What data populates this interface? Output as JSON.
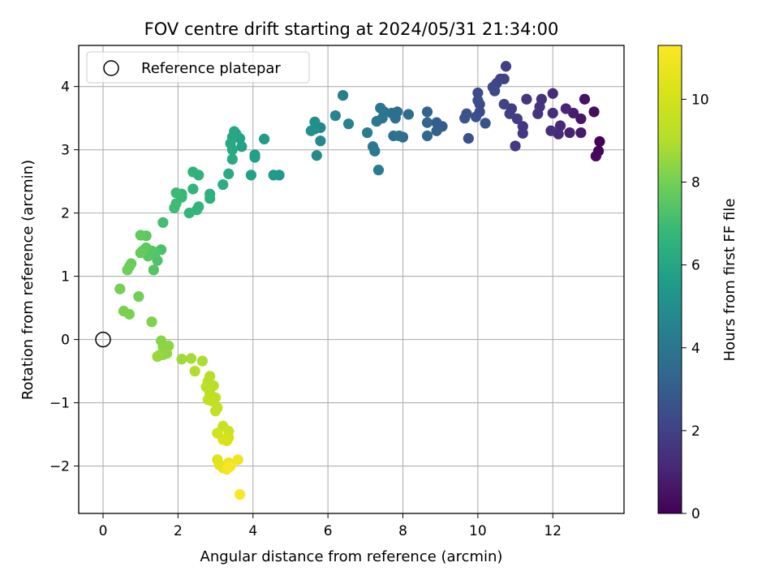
{
  "chart_data": {
    "type": "scatter",
    "title": "FOV centre drift starting at 2024/05/31 21:34:00",
    "xlabel": "Angular distance from reference (arcmin)",
    "ylabel": "Rotation from reference (arcmin)",
    "xlim": [
      -0.65,
      13.9
    ],
    "ylim": [
      -2.75,
      4.65
    ],
    "xticks": [
      0,
      2,
      4,
      6,
      8,
      10,
      12
    ],
    "yticks": [
      -2,
      -1,
      0,
      1,
      2,
      3,
      4
    ],
    "xtick_labels": [
      "0",
      "2",
      "4",
      "6",
      "8",
      "10",
      "12"
    ],
    "ytick_labels": [
      "−2",
      "−1",
      "0",
      "1",
      "2",
      "3",
      "4"
    ],
    "grid": true,
    "legend": {
      "placement": "top-left",
      "label": "Reference platepar"
    },
    "reference_point": {
      "x": 0,
      "y": 0
    },
    "colorbar": {
      "label": "Hours from first FF file",
      "colormap": "viridis",
      "range": [
        0,
        11.3
      ],
      "ticks": [
        0,
        2,
        4,
        6,
        8,
        10
      ],
      "tick_labels": [
        "0",
        "2",
        "4",
        "6",
        "8",
        "10"
      ]
    },
    "points": [
      {
        "x": 13.25,
        "y": 3.13,
        "c": 0.05
      },
      {
        "x": 13.22,
        "y": 2.98,
        "c": 0.15
      },
      {
        "x": 13.15,
        "y": 2.9,
        "c": 0.25
      },
      {
        "x": 13.1,
        "y": 3.6,
        "c": 0.35
      },
      {
        "x": 12.85,
        "y": 3.8,
        "c": 0.5
      },
      {
        "x": 12.75,
        "y": 3.49,
        "c": 0.65
      },
      {
        "x": 12.75,
        "y": 3.27,
        "c": 0.75
      },
      {
        "x": 12.55,
        "y": 3.58,
        "c": 0.85
      },
      {
        "x": 12.45,
        "y": 3.27,
        "c": 0.95
      },
      {
        "x": 12.35,
        "y": 3.65,
        "c": 1.05
      },
      {
        "x": 12.2,
        "y": 3.38,
        "c": 1.15
      },
      {
        "x": 12.15,
        "y": 3.25,
        "c": 1.2
      },
      {
        "x": 12.0,
        "y": 3.89,
        "c": 1.3
      },
      {
        "x": 12.0,
        "y": 3.58,
        "c": 1.35
      },
      {
        "x": 11.95,
        "y": 3.3,
        "c": 1.4
      },
      {
        "x": 11.7,
        "y": 3.8,
        "c": 1.45
      },
      {
        "x": 11.65,
        "y": 3.68,
        "c": 1.5
      },
      {
        "x": 11.6,
        "y": 3.57,
        "c": 1.55
      },
      {
        "x": 11.3,
        "y": 3.8,
        "c": 1.6
      },
      {
        "x": 11.2,
        "y": 3.37,
        "c": 1.65
      },
      {
        "x": 11.2,
        "y": 3.26,
        "c": 1.7
      },
      {
        "x": 11.0,
        "y": 3.06,
        "c": 1.75
      },
      {
        "x": 11.05,
        "y": 3.49,
        "c": 1.8
      },
      {
        "x": 10.9,
        "y": 3.65,
        "c": 1.85
      },
      {
        "x": 10.85,
        "y": 3.57,
        "c": 1.9
      },
      {
        "x": 10.75,
        "y": 4.32,
        "c": 1.95
      },
      {
        "x": 10.7,
        "y": 4.12,
        "c": 2.0
      },
      {
        "x": 10.7,
        "y": 3.72,
        "c": 2.05
      },
      {
        "x": 10.6,
        "y": 4.12,
        "c": 2.1
      },
      {
        "x": 10.5,
        "y": 4.05,
        "c": 2.15
      },
      {
        "x": 10.45,
        "y": 3.93,
        "c": 2.2
      },
      {
        "x": 10.4,
        "y": 3.99,
        "c": 2.25
      },
      {
        "x": 10.05,
        "y": 3.72,
        "c": 2.3
      },
      {
        "x": 10.05,
        "y": 3.6,
        "c": 2.35
      },
      {
        "x": 10.0,
        "y": 3.9,
        "c": 2.4
      },
      {
        "x": 10.0,
        "y": 3.78,
        "c": 2.45
      },
      {
        "x": 9.95,
        "y": 3.52,
        "c": 2.5
      },
      {
        "x": 10.2,
        "y": 3.42,
        "c": 2.55
      },
      {
        "x": 9.75,
        "y": 3.18,
        "c": 2.6
      },
      {
        "x": 9.7,
        "y": 3.57,
        "c": 2.65
      },
      {
        "x": 9.65,
        "y": 3.5,
        "c": 2.7
      },
      {
        "x": 9.05,
        "y": 3.37,
        "c": 2.9
      },
      {
        "x": 8.9,
        "y": 3.43,
        "c": 3.0
      },
      {
        "x": 8.9,
        "y": 3.3,
        "c": 3.1
      },
      {
        "x": 8.65,
        "y": 3.6,
        "c": 3.2
      },
      {
        "x": 8.65,
        "y": 3.43,
        "c": 3.3
      },
      {
        "x": 8.65,
        "y": 3.22,
        "c": 3.4
      },
      {
        "x": 8.15,
        "y": 3.56,
        "c": 3.5
      },
      {
        "x": 8.0,
        "y": 3.2,
        "c": 3.6
      },
      {
        "x": 7.85,
        "y": 3.6,
        "c": 3.65
      },
      {
        "x": 7.8,
        "y": 3.5,
        "c": 3.7
      },
      {
        "x": 7.7,
        "y": 3.58,
        "c": 3.75
      },
      {
        "x": 7.75,
        "y": 3.22,
        "c": 3.8
      },
      {
        "x": 7.9,
        "y": 3.22,
        "c": 3.85
      },
      {
        "x": 7.5,
        "y": 3.6,
        "c": 3.9
      },
      {
        "x": 7.4,
        "y": 3.66,
        "c": 3.95
      },
      {
        "x": 7.45,
        "y": 3.5,
        "c": 4.0
      },
      {
        "x": 7.3,
        "y": 3.45,
        "c": 4.05
      },
      {
        "x": 7.2,
        "y": 3.05,
        "c": 4.1
      },
      {
        "x": 7.25,
        "y": 2.98,
        "c": 4.15
      },
      {
        "x": 7.35,
        "y": 2.68,
        "c": 4.2
      },
      {
        "x": 7.05,
        "y": 3.27,
        "c": 4.3
      },
      {
        "x": 6.4,
        "y": 3.86,
        "c": 4.4
      },
      {
        "x": 6.55,
        "y": 3.41,
        "c": 4.5
      },
      {
        "x": 6.2,
        "y": 3.54,
        "c": 4.6
      },
      {
        "x": 5.8,
        "y": 3.35,
        "c": 4.7
      },
      {
        "x": 5.8,
        "y": 3.14,
        "c": 4.8
      },
      {
        "x": 5.7,
        "y": 2.91,
        "c": 4.9
      },
      {
        "x": 5.65,
        "y": 3.44,
        "c": 5.0
      },
      {
        "x": 5.65,
        "y": 3.33,
        "c": 5.05
      },
      {
        "x": 5.55,
        "y": 3.3,
        "c": 5.1
      },
      {
        "x": 4.7,
        "y": 2.6,
        "c": 5.4
      },
      {
        "x": 4.55,
        "y": 2.6,
        "c": 5.5
      },
      {
        "x": 4.3,
        "y": 3.17,
        "c": 5.6
      },
      {
        "x": 4.05,
        "y": 2.92,
        "c": 5.7
      },
      {
        "x": 4.05,
        "y": 2.88,
        "c": 5.75
      },
      {
        "x": 3.95,
        "y": 2.6,
        "c": 5.8
      },
      {
        "x": 3.7,
        "y": 3.05,
        "c": 5.85
      },
      {
        "x": 3.65,
        "y": 3.18,
        "c": 5.9
      },
      {
        "x": 3.55,
        "y": 3.25,
        "c": 5.95
      },
      {
        "x": 3.5,
        "y": 3.29,
        "c": 6.0
      },
      {
        "x": 3.45,
        "y": 3.2,
        "c": 6.05
      },
      {
        "x": 3.4,
        "y": 3.1,
        "c": 6.1
      },
      {
        "x": 3.45,
        "y": 3.0,
        "c": 6.15
      },
      {
        "x": 3.45,
        "y": 2.85,
        "c": 6.2
      },
      {
        "x": 3.35,
        "y": 2.62,
        "c": 6.25
      },
      {
        "x": 3.2,
        "y": 2.45,
        "c": 6.3
      },
      {
        "x": 2.85,
        "y": 2.3,
        "c": 6.4
      },
      {
        "x": 2.85,
        "y": 2.23,
        "c": 6.45
      },
      {
        "x": 2.55,
        "y": 2.6,
        "c": 6.5
      },
      {
        "x": 2.4,
        "y": 2.65,
        "c": 6.55
      },
      {
        "x": 2.4,
        "y": 2.38,
        "c": 6.6
      },
      {
        "x": 2.55,
        "y": 2.1,
        "c": 6.65
      },
      {
        "x": 2.5,
        "y": 2.05,
        "c": 6.7
      },
      {
        "x": 2.3,
        "y": 2.0,
        "c": 6.75
      },
      {
        "x": 2.1,
        "y": 2.3,
        "c": 6.8
      },
      {
        "x": 2.1,
        "y": 2.25,
        "c": 6.85
      },
      {
        "x": 1.95,
        "y": 2.32,
        "c": 6.9
      },
      {
        "x": 1.95,
        "y": 2.15,
        "c": 6.95
      },
      {
        "x": 1.9,
        "y": 2.08,
        "c": 7.0
      },
      {
        "x": 1.6,
        "y": 1.85,
        "c": 7.1
      },
      {
        "x": 1.55,
        "y": 1.42,
        "c": 7.2
      },
      {
        "x": 1.45,
        "y": 1.25,
        "c": 7.3
      },
      {
        "x": 1.4,
        "y": 1.38,
        "c": 7.35
      },
      {
        "x": 1.35,
        "y": 1.1,
        "c": 7.4
      },
      {
        "x": 1.3,
        "y": 1.4,
        "c": 7.45
      },
      {
        "x": 1.2,
        "y": 1.32,
        "c": 7.5
      },
      {
        "x": 1.15,
        "y": 1.64,
        "c": 7.55
      },
      {
        "x": 1.15,
        "y": 1.45,
        "c": 7.6
      },
      {
        "x": 1.05,
        "y": 1.4,
        "c": 7.65
      },
      {
        "x": 1.0,
        "y": 1.65,
        "c": 7.7
      },
      {
        "x": 1.0,
        "y": 1.37,
        "c": 7.75
      },
      {
        "x": 0.75,
        "y": 1.2,
        "c": 7.8
      },
      {
        "x": 0.7,
        "y": 1.15,
        "c": 7.85
      },
      {
        "x": 0.65,
        "y": 1.1,
        "c": 7.9
      },
      {
        "x": 0.95,
        "y": 0.68,
        "c": 7.95
      },
      {
        "x": 0.45,
        "y": 0.8,
        "c": 8.0
      },
      {
        "x": 0.55,
        "y": 0.45,
        "c": 8.05
      },
      {
        "x": 0.7,
        "y": 0.4,
        "c": 8.1
      },
      {
        "x": 1.3,
        "y": 0.28,
        "c": 8.2
      },
      {
        "x": 1.55,
        "y": -0.02,
        "c": 8.3
      },
      {
        "x": 1.6,
        "y": -0.12,
        "c": 8.35
      },
      {
        "x": 1.75,
        "y": -0.1,
        "c": 8.4
      },
      {
        "x": 1.7,
        "y": -0.22,
        "c": 8.45
      },
      {
        "x": 1.6,
        "y": -0.24,
        "c": 8.5
      },
      {
        "x": 1.5,
        "y": -0.25,
        "c": 8.55
      },
      {
        "x": 1.45,
        "y": -0.27,
        "c": 8.6
      },
      {
        "x": 2.1,
        "y": -0.31,
        "c": 8.7
      },
      {
        "x": 2.35,
        "y": -0.3,
        "c": 8.8
      },
      {
        "x": 2.65,
        "y": -0.34,
        "c": 8.9
      },
      {
        "x": 2.45,
        "y": -0.5,
        "c": 9.0
      },
      {
        "x": 2.85,
        "y": -0.58,
        "c": 9.1
      },
      {
        "x": 2.8,
        "y": -0.66,
        "c": 9.15
      },
      {
        "x": 2.95,
        "y": -0.73,
        "c": 9.2
      },
      {
        "x": 2.75,
        "y": -0.75,
        "c": 9.25
      },
      {
        "x": 2.85,
        "y": -0.85,
        "c": 9.3
      },
      {
        "x": 3.0,
        "y": -0.92,
        "c": 9.35
      },
      {
        "x": 2.8,
        "y": -0.95,
        "c": 9.4
      },
      {
        "x": 2.9,
        "y": -0.97,
        "c": 9.45
      },
      {
        "x": 3.05,
        "y": -1.08,
        "c": 9.5
      },
      {
        "x": 3.0,
        "y": -1.13,
        "c": 9.55
      },
      {
        "x": 3.2,
        "y": -1.37,
        "c": 9.7
      },
      {
        "x": 3.35,
        "y": -1.45,
        "c": 9.8
      },
      {
        "x": 3.05,
        "y": -1.48,
        "c": 9.9
      },
      {
        "x": 3.35,
        "y": -1.55,
        "c": 10.0
      },
      {
        "x": 3.2,
        "y": -1.58,
        "c": 10.1
      },
      {
        "x": 3.3,
        "y": -1.6,
        "c": 10.2
      },
      {
        "x": 3.05,
        "y": -1.9,
        "c": 10.4
      },
      {
        "x": 3.1,
        "y": -1.98,
        "c": 10.5
      },
      {
        "x": 3.2,
        "y": -2.03,
        "c": 10.6
      },
      {
        "x": 3.35,
        "y": -1.95,
        "c": 10.7
      },
      {
        "x": 3.3,
        "y": -2.05,
        "c": 10.8
      },
      {
        "x": 3.6,
        "y": -1.9,
        "c": 10.9
      },
      {
        "x": 3.4,
        "y": -2.0,
        "c": 11.0
      },
      {
        "x": 3.35,
        "y": -2.02,
        "c": 11.1
      },
      {
        "x": 3.65,
        "y": -2.45,
        "c": 11.2
      }
    ]
  }
}
